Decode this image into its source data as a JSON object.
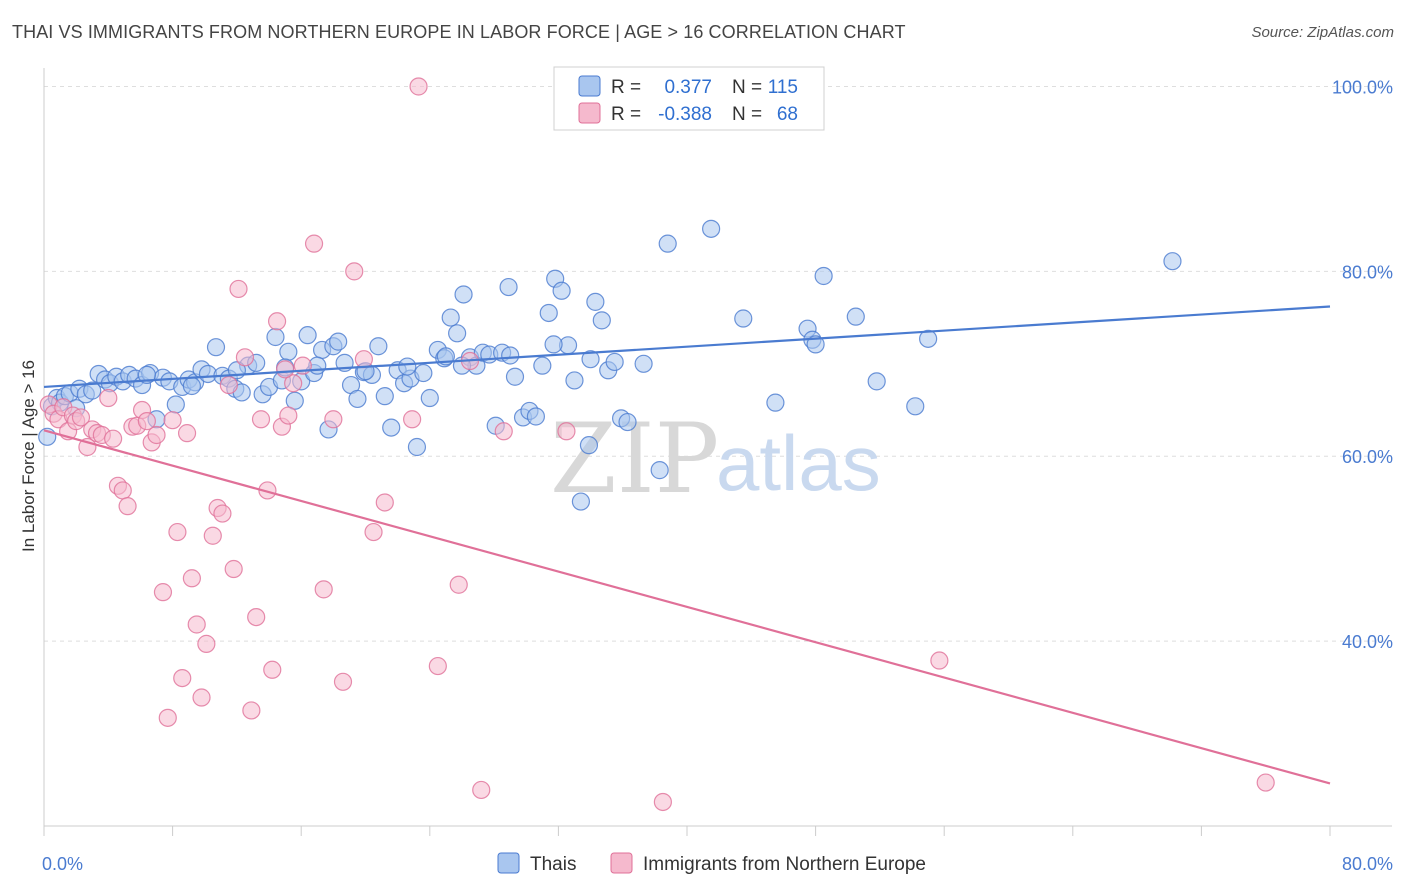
{
  "title": "THAI VS IMMIGRANTS FROM NORTHERN EUROPE IN LABOR FORCE | AGE > 16 CORRELATION CHART",
  "source": "Source: ZipAtlas.com",
  "watermark": {
    "zip": "ZIP",
    "atlas": "atlas"
  },
  "chart_data": {
    "type": "scatter",
    "ylabel": "In Labor Force | Age > 16",
    "xlim": [
      0,
      80
    ],
    "ylim": [
      20,
      102
    ],
    "x_tick_labels": [
      {
        "value": 0,
        "label": "0.0%"
      },
      {
        "value": 80,
        "label": "80.0%"
      }
    ],
    "y_tick_labels": [
      {
        "value": 40,
        "label": "40.0%"
      },
      {
        "value": 60,
        "label": "60.0%"
      },
      {
        "value": 80,
        "label": "80.0%"
      },
      {
        "value": 100,
        "label": "100.0%"
      }
    ],
    "grid": true,
    "legend_position": "top-center",
    "legend": [
      {
        "r_label": "R =",
        "r_value": "0.377",
        "n_label": "N =",
        "n_value": "115"
      },
      {
        "r_label": "R =",
        "r_value": "-0.388",
        "n_label": "N =",
        "n_value": "68"
      }
    ],
    "series": [
      {
        "name": "Thais",
        "color": "#4a7bd0",
        "fill": "#a9c6ef",
        "trend": {
          "x": [
            0,
            80
          ],
          "y": [
            67.5,
            76.2
          ]
        },
        "points": [
          [
            0.2,
            62.1
          ],
          [
            0.5,
            65.4
          ],
          [
            0.8,
            66.3
          ],
          [
            1.0,
            65.8
          ],
          [
            1.3,
            66.5
          ],
          [
            1.6,
            66.8
          ],
          [
            2.0,
            65.2
          ],
          [
            2.2,
            67.3
          ],
          [
            2.6,
            66.7
          ],
          [
            3.0,
            67.1
          ],
          [
            3.4,
            68.9
          ],
          [
            3.8,
            68.3
          ],
          [
            4.1,
            67.9
          ],
          [
            4.5,
            68.6
          ],
          [
            4.9,
            68.1
          ],
          [
            5.3,
            68.8
          ],
          [
            5.7,
            68.4
          ],
          [
            6.1,
            67.7
          ],
          [
            6.6,
            69.0
          ],
          [
            7.0,
            64.0
          ],
          [
            7.4,
            68.5
          ],
          [
            7.8,
            68.1
          ],
          [
            8.2,
            65.6
          ],
          [
            8.6,
            67.5
          ],
          [
            9.0,
            68.3
          ],
          [
            9.4,
            68.0
          ],
          [
            9.8,
            69.4
          ],
          [
            10.2,
            68.9
          ],
          [
            10.7,
            71.8
          ],
          [
            11.1,
            68.7
          ],
          [
            11.5,
            68.4
          ],
          [
            11.9,
            67.3
          ],
          [
            12.3,
            66.9
          ],
          [
            12.7,
            69.8
          ],
          [
            13.2,
            70.1
          ],
          [
            13.6,
            66.7
          ],
          [
            14.0,
            67.5
          ],
          [
            14.4,
            72.9
          ],
          [
            14.8,
            68.2
          ],
          [
            15.2,
            71.3
          ],
          [
            15.6,
            66.0
          ],
          [
            16.0,
            68.1
          ],
          [
            16.4,
            73.1
          ],
          [
            16.8,
            69.0
          ],
          [
            17.3,
            71.5
          ],
          [
            17.7,
            62.9
          ],
          [
            18.0,
            71.9
          ],
          [
            18.3,
            72.4
          ],
          [
            18.7,
            70.1
          ],
          [
            19.1,
            67.7
          ],
          [
            19.5,
            66.2
          ],
          [
            19.9,
            69.1
          ],
          [
            20.4,
            68.8
          ],
          [
            20.8,
            71.9
          ],
          [
            21.2,
            66.5
          ],
          [
            21.6,
            63.1
          ],
          [
            22.0,
            69.3
          ],
          [
            22.4,
            67.9
          ],
          [
            22.8,
            68.4
          ],
          [
            23.2,
            61.0
          ],
          [
            23.6,
            69.0
          ],
          [
            24.0,
            66.3
          ],
          [
            24.5,
            71.5
          ],
          [
            24.9,
            70.6
          ],
          [
            25.3,
            75.0
          ],
          [
            25.7,
            73.3
          ],
          [
            26.1,
            77.5
          ],
          [
            26.5,
            70.7
          ],
          [
            26.9,
            69.8
          ],
          [
            27.3,
            71.2
          ],
          [
            27.7,
            71.0
          ],
          [
            28.1,
            63.3
          ],
          [
            28.5,
            71.2
          ],
          [
            28.9,
            78.3
          ],
          [
            29.3,
            68.6
          ],
          [
            29.8,
            64.2
          ],
          [
            30.2,
            64.9
          ],
          [
            30.6,
            64.3
          ],
          [
            31.0,
            69.8
          ],
          [
            31.4,
            75.5
          ],
          [
            31.8,
            79.2
          ],
          [
            32.2,
            77.9
          ],
          [
            32.6,
            72.0
          ],
          [
            33.0,
            68.2
          ],
          [
            33.4,
            55.1
          ],
          [
            33.9,
            61.2
          ],
          [
            34.3,
            76.7
          ],
          [
            34.7,
            74.7
          ],
          [
            35.1,
            69.3
          ],
          [
            35.5,
            70.2
          ],
          [
            35.9,
            64.1
          ],
          [
            36.3,
            63.7
          ],
          [
            37.3,
            70.0
          ],
          [
            38.3,
            58.5
          ],
          [
            38.8,
            83.0
          ],
          [
            41.5,
            84.6
          ],
          [
            43.5,
            74.9
          ],
          [
            45.5,
            65.8
          ],
          [
            47.5,
            73.8
          ],
          [
            47.8,
            72.6
          ],
          [
            48.0,
            72.1
          ],
          [
            48.5,
            79.5
          ],
          [
            50.5,
            75.1
          ],
          [
            51.8,
            68.1
          ],
          [
            54.2,
            65.4
          ],
          [
            55.0,
            72.7
          ],
          [
            70.2,
            81.1
          ],
          [
            6.4,
            68.8
          ],
          [
            9.2,
            67.6
          ],
          [
            12.0,
            69.3
          ],
          [
            15.0,
            69.6
          ],
          [
            17.0,
            69.8
          ],
          [
            20.0,
            69.2
          ],
          [
            22.6,
            69.7
          ],
          [
            25.0,
            70.8
          ],
          [
            26.0,
            69.8
          ],
          [
            29.0,
            70.9
          ],
          [
            31.7,
            72.1
          ],
          [
            34.0,
            70.5
          ]
        ]
      },
      {
        "name": "Immigrants from Northern Europe",
        "color": "#e07098",
        "fill": "#f5b9cd",
        "trend": {
          "x": [
            0,
            80
          ],
          "y": [
            62.8,
            24.6
          ]
        },
        "points": [
          [
            0.3,
            65.6
          ],
          [
            0.6,
            64.6
          ],
          [
            0.9,
            64.0
          ],
          [
            1.2,
            65.3
          ],
          [
            1.5,
            62.7
          ],
          [
            1.8,
            64.4
          ],
          [
            2.0,
            63.8
          ],
          [
            2.3,
            64.2
          ],
          [
            2.7,
            61.0
          ],
          [
            3.0,
            62.9
          ],
          [
            3.3,
            62.5
          ],
          [
            3.6,
            62.3
          ],
          [
            4.0,
            66.3
          ],
          [
            4.3,
            61.9
          ],
          [
            4.6,
            56.8
          ],
          [
            4.9,
            56.3
          ],
          [
            5.2,
            54.6
          ],
          [
            5.5,
            63.2
          ],
          [
            5.8,
            63.3
          ],
          [
            6.1,
            65.0
          ],
          [
            6.4,
            63.8
          ],
          [
            6.7,
            61.5
          ],
          [
            7.0,
            62.3
          ],
          [
            7.4,
            45.3
          ],
          [
            7.7,
            31.7
          ],
          [
            8.0,
            63.9
          ],
          [
            8.3,
            51.8
          ],
          [
            8.6,
            36.0
          ],
          [
            8.9,
            62.5
          ],
          [
            9.2,
            46.8
          ],
          [
            9.5,
            41.8
          ],
          [
            9.8,
            33.9
          ],
          [
            10.1,
            39.7
          ],
          [
            10.5,
            51.4
          ],
          [
            10.8,
            54.4
          ],
          [
            11.1,
            53.8
          ],
          [
            11.5,
            67.7
          ],
          [
            11.8,
            47.8
          ],
          [
            12.1,
            78.1
          ],
          [
            12.5,
            70.7
          ],
          [
            12.9,
            32.5
          ],
          [
            13.2,
            42.6
          ],
          [
            13.5,
            64.0
          ],
          [
            13.9,
            56.3
          ],
          [
            14.2,
            36.9
          ],
          [
            14.5,
            74.6
          ],
          [
            14.8,
            63.2
          ],
          [
            15.2,
            64.4
          ],
          [
            15.5,
            67.9
          ],
          [
            16.1,
            69.8
          ],
          [
            16.8,
            83.0
          ],
          [
            17.4,
            45.6
          ],
          [
            18.0,
            64.0
          ],
          [
            18.6,
            35.6
          ],
          [
            19.3,
            80.0
          ],
          [
            19.9,
            70.5
          ],
          [
            20.5,
            51.8
          ],
          [
            21.2,
            55.0
          ],
          [
            22.9,
            64.0
          ],
          [
            24.5,
            37.3
          ],
          [
            25.8,
            46.1
          ],
          [
            26.5,
            70.3
          ],
          [
            27.2,
            23.9
          ],
          [
            28.6,
            62.7
          ],
          [
            32.5,
            62.7
          ],
          [
            38.5,
            22.6
          ],
          [
            55.7,
            37.9
          ],
          [
            76.0,
            24.7
          ],
          [
            23.3,
            100.0
          ],
          [
            15.0,
            69.4
          ]
        ]
      }
    ]
  }
}
